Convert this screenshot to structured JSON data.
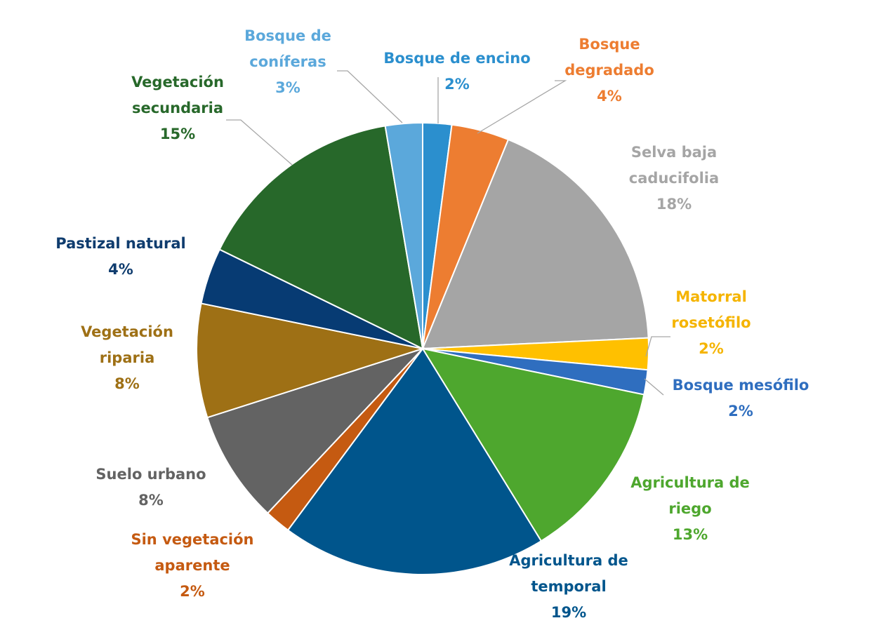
{
  "chart_data": {
    "type": "pie",
    "title": "",
    "slices": [
      {
        "key": "encino",
        "label_lines": [
          "Bosque de encino"
        ],
        "pct_label": "2%",
        "value": 2.1,
        "color": "#2b8fce",
        "text_color": "#2b8fce"
      },
      {
        "key": "degradado",
        "label_lines": [
          "Bosque",
          "degradado"
        ],
        "pct_label": "4%",
        "value": 4.2,
        "color": "#ed7d31",
        "text_color": "#ed7d31"
      },
      {
        "key": "selva",
        "label_lines": [
          "Selva baja",
          "caducifolia"
        ],
        "pct_label": "18%",
        "value": 18.4,
        "color": "#a5a5a5",
        "text_color": "#a5a5a5"
      },
      {
        "key": "matorral",
        "label_lines": [
          "Matorral",
          "rosetófilo"
        ],
        "pct_label": "2%",
        "value": 2.3,
        "color": "#ffc000",
        "text_color": "#f5b400"
      },
      {
        "key": "mesofilo",
        "label_lines": [
          "Bosque mesófilo"
        ],
        "pct_label": "2%",
        "value": 1.8,
        "color": "#2f6ebf",
        "text_color": "#2f6ebf"
      },
      {
        "key": "riego",
        "label_lines": [
          "Agricultura de",
          "riego"
        ],
        "pct_label": "13%",
        "value": 13.2,
        "color": "#4ea72e",
        "text_color": "#4ea72e"
      },
      {
        "key": "temporal",
        "label_lines": [
          "Agricultura de",
          "temporal"
        ],
        "pct_label": "19%",
        "value": 19.3,
        "color": "#00558c",
        "text_color": "#00558c"
      },
      {
        "key": "sinveg",
        "label_lines": [
          "Sin vegetación",
          "aparente"
        ],
        "pct_label": "2%",
        "value": 1.9,
        "color": "#c55a11",
        "text_color": "#c55a11"
      },
      {
        "key": "urbano",
        "label_lines": [
          "Suelo urbano"
        ],
        "pct_label": "8%",
        "value": 8.2,
        "color": "#636363",
        "text_color": "#636363"
      },
      {
        "key": "riparia",
        "label_lines": [
          "Vegetación",
          "riparia"
        ],
        "pct_label": "8%",
        "value": 8.3,
        "color": "#9e7015",
        "text_color": "#9e7015"
      },
      {
        "key": "pastizal",
        "label_lines": [
          "Pastizal natural"
        ],
        "pct_label": "4%",
        "value": 4.1,
        "color": "#073b73",
        "text_color": "#0f3c6e"
      },
      {
        "key": "secundaria",
        "label_lines": [
          "Vegetación",
          "secundaria"
        ],
        "pct_label": "15%",
        "value": 15.4,
        "color": "#27682a",
        "text_color": "#27682a"
      },
      {
        "key": "coniferas",
        "label_lines": [
          "Bosque de",
          "coníferas"
        ],
        "pct_label": "3%",
        "value": 2.7,
        "color": "#5ba8db",
        "text_color": "#5ba8db"
      }
    ]
  }
}
